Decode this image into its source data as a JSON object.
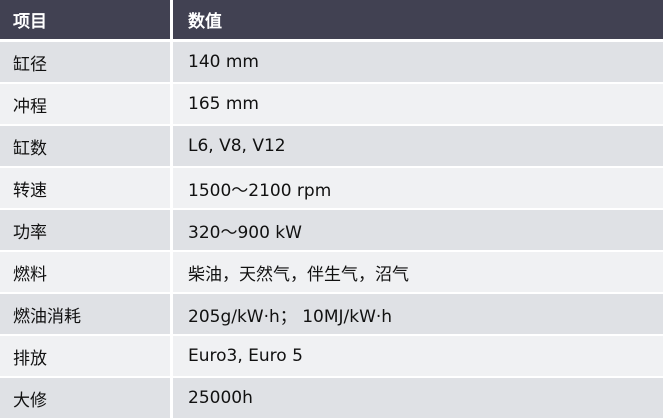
{
  "header": {
    "col1": "项目",
    "col2": "数值"
  },
  "rows": [
    {
      "item": "缸径",
      "value": "140 mm"
    },
    {
      "item": "冲程",
      "value": "165 mm"
    },
    {
      "item": "缸数",
      "value": "L6, V8, V12"
    },
    {
      "item": "转速",
      "value": "1500～2100 rpm"
    },
    {
      "item": "功率",
      "value": "320～900 kW"
    },
    {
      "item": "燃料",
      "value": "柴油，天然气，伴生气，沼气"
    },
    {
      "item": "燃油消耗",
      "value": "205g/kW·h； 10MJ/kW·h"
    },
    {
      "item": "排放",
      "value": "Euro3, Euro 5"
    },
    {
      "item": "大修",
      "value": "25000h"
    }
  ],
  "colors": {
    "header_bg": "#414152",
    "row_odd": "#dfe1e5",
    "row_even": "#f0f1f3"
  }
}
